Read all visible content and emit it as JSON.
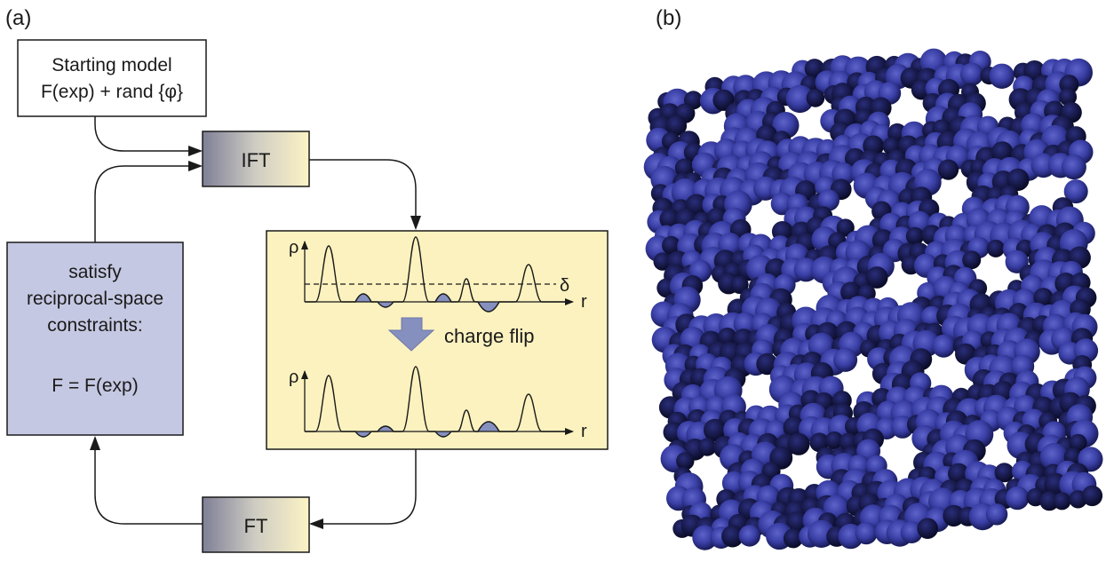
{
  "panel_a": {
    "label": "(a)",
    "starting_model": {
      "line1": "Starting model",
      "line2": "F(exp) + rand {φ}"
    },
    "ift_label": "IFT",
    "ft_label": "FT",
    "constraints_box": {
      "line1": "satisfy",
      "line2": "reciprocal-space",
      "line3": "constraints:",
      "line4": "F = F(exp)"
    },
    "density_box": {
      "y_axis_label": "ρ",
      "x_axis_label": "r",
      "threshold_label": "δ",
      "flip_label": "charge flip"
    }
  },
  "panel_b": {
    "label": "(b)"
  },
  "colors": {
    "box_lavender": "#c5c8e2",
    "box_yellow": "#fcf2bf",
    "arrow_blue": "#8690bf",
    "sphere_blue": "#3a3fa6",
    "sphere_dark": "#0c0e33"
  }
}
